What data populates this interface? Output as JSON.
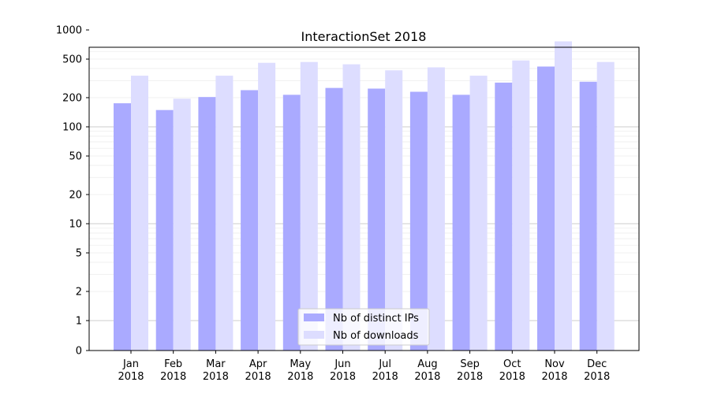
{
  "chart_data": {
    "type": "bar",
    "title": "InteractionSet 2018",
    "xlabel": "",
    "ylabel": "",
    "yscale": "symlog",
    "ylim": [
      0,
      1100
    ],
    "yticks": [
      0,
      1,
      2,
      5,
      10,
      20,
      50,
      100,
      200,
      500,
      1000
    ],
    "grid": true,
    "legend_position": "bottom-center",
    "categories": [
      "Jan\n2018",
      "Feb\n2018",
      "Mar\n2018",
      "Apr\n2018",
      "May\n2018",
      "Jun\n2018",
      "Jul\n2018",
      "Aug\n2018",
      "Sep\n2018",
      "Oct\n2018",
      "Nov\n2018",
      "Dec\n2018"
    ],
    "series": [
      {
        "name": "Nb of distinct IPs",
        "color": "#aaaaff",
        "values": [
          175,
          149,
          203,
          239,
          214,
          252,
          248,
          230,
          214,
          286,
          419,
          292
        ]
      },
      {
        "name": "Nb of downloads",
        "color": "#ddddff",
        "values": [
          337,
          195,
          337,
          458,
          467,
          442,
          383,
          411,
          337,
          484,
          762,
          467
        ]
      }
    ]
  }
}
